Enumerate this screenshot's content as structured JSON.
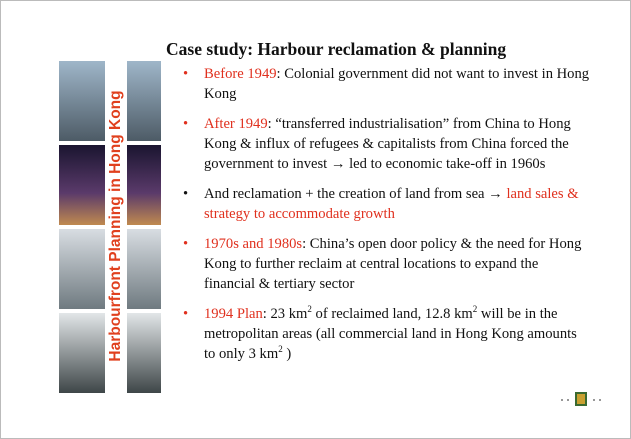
{
  "slide": {
    "side_title": "Harbourfront Planning in Hong Kong",
    "title": "Case study: Harbour reclamation & planning",
    "bullets": [
      {
        "segments": [
          {
            "text": "Before 1949",
            "color": "#e0301e"
          },
          {
            "text": ": Colonial government did not want to invest in Hong Kong"
          }
        ]
      },
      {
        "segments": [
          {
            "text": "After 1949",
            "color": "#e0301e"
          },
          {
            "text": ": “transferred industrialisation” from China to Hong Kong & influx of refugees & capitalists from China forced the government to invest → led to economic take-off in 1960s"
          }
        ]
      },
      {
        "segments": [
          {
            "text": "And reclamation + the creation of land from sea → "
          },
          {
            "text": "land sales & strategy to accommodate growth",
            "color": "#e0301e"
          }
        ]
      },
      {
        "segments": [
          {
            "text": "1970s and 1980s",
            "color": "#e0301e"
          },
          {
            "text": ": China’s open door policy & the need for Hong Kong to further reclaim at central locations to expand the financial & tertiary sector"
          }
        ]
      },
      {
        "segments": [
          {
            "text": "1994 Plan",
            "color": "#e0301e"
          },
          {
            "text": ": 23 km"
          },
          {
            "text": "2",
            "sup": true
          },
          {
            "text": " of reclaimed land, 12.8 km"
          },
          {
            "text": "2",
            "sup": true
          },
          {
            "text": " will be in the metropolitan areas (all commercial land in Hong Kong amounts to only 3 km"
          },
          {
            "text": "2",
            "sup": true
          },
          {
            "text": " )"
          }
        ]
      }
    ]
  }
}
